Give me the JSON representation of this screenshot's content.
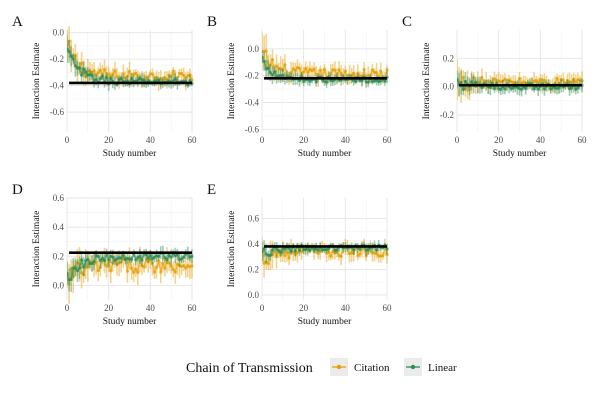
{
  "colors": {
    "citation": "#E69F00",
    "linear": "#2E8B57",
    "truth": "#000000",
    "grid": "#e5e5e5",
    "legend_key_bg": "#ebebeb"
  },
  "legend": {
    "title": "Chain of Transmission",
    "entries": [
      {
        "label": "Citation",
        "color": "#E69F00"
      },
      {
        "label": "Linear",
        "color": "#2E8B57"
      }
    ]
  },
  "chart_data": [
    {
      "type": "line",
      "panel": "A",
      "xlabel": "Study number",
      "ylabel": "Interaction Estimate",
      "xlim": [
        0,
        60
      ],
      "ylim": [
        -0.75,
        0.02
      ],
      "xticks": [
        0,
        20,
        40,
        60
      ],
      "yticks": [
        -0.6,
        -0.4,
        -0.2,
        0.0
      ],
      "ytick_labels": [
        "-0.6",
        "-0.4",
        "-0.2",
        "0.0"
      ],
      "grid": true,
      "true_value": -0.38,
      "series": [
        {
          "name": "Citation",
          "start": -0.12,
          "level": -0.33,
          "spread": 0.04,
          "band": 0.05
        },
        {
          "name": "Linear",
          "start": -0.14,
          "level": -0.37,
          "spread": 0.025,
          "band": 0.035
        }
      ]
    },
    {
      "type": "line",
      "panel": "B",
      "xlabel": "Study number",
      "ylabel": "Interaction Estimate",
      "xlim": [
        0,
        60
      ],
      "ylim": [
        -0.62,
        0.14
      ],
      "xticks": [
        0,
        20,
        40,
        60
      ],
      "yticks": [
        -0.6,
        -0.4,
        -0.2,
        0.0
      ],
      "ytick_labels": [
        "-0.6",
        "-0.4",
        "-0.2",
        "0.0"
      ],
      "grid": true,
      "true_value": -0.22,
      "series": [
        {
          "name": "Citation",
          "start": -0.05,
          "level": -0.19,
          "spread": 0.04,
          "band": 0.05
        },
        {
          "name": "Linear",
          "start": -0.08,
          "level": -0.23,
          "spread": 0.02,
          "band": 0.03
        }
      ]
    },
    {
      "type": "line",
      "panel": "C",
      "xlabel": "Study number",
      "ylabel": "Interaction Estimate",
      "xlim": [
        0,
        60
      ],
      "ylim": [
        -0.32,
        0.4
      ],
      "xticks": [
        0,
        20,
        40,
        60
      ],
      "yticks": [
        -0.2,
        0.0,
        0.2
      ],
      "ytick_labels": [
        "-0.2",
        "0.0",
        "0.2"
      ],
      "grid": true,
      "true_value": 0.01,
      "series": [
        {
          "name": "Citation",
          "start": 0.02,
          "level": 0.03,
          "spread": 0.03,
          "band": 0.045
        },
        {
          "name": "Linear",
          "start": 0.03,
          "level": 0.0,
          "spread": 0.02,
          "band": 0.035
        }
      ]
    },
    {
      "type": "line",
      "panel": "D",
      "xlabel": "Study number",
      "ylabel": "Interaction Estimate",
      "xlim": [
        0,
        60
      ],
      "ylim": [
        -0.1,
        0.6
      ],
      "xticks": [
        0,
        20,
        40,
        60
      ],
      "yticks": [
        0.0,
        0.2,
        0.4,
        0.6
      ],
      "ytick_labels": [
        "0.0",
        "0.2",
        "0.4",
        "0.6"
      ],
      "grid": true,
      "true_value": 0.225,
      "series": [
        {
          "name": "Citation",
          "start": 0.02,
          "level": 0.14,
          "spread": 0.05,
          "band": 0.06
        },
        {
          "name": "Linear",
          "start": 0.05,
          "level": 0.2,
          "spread": 0.025,
          "band": 0.035
        }
      ]
    },
    {
      "type": "line",
      "panel": "E",
      "xlabel": "Study number",
      "ylabel": "Interaction Estimate",
      "xlim": [
        0,
        60
      ],
      "ylim": [
        -0.04,
        0.76
      ],
      "xticks": [
        0,
        20,
        40,
        60
      ],
      "yticks": [
        0.0,
        0.2,
        0.4,
        0.6
      ],
      "ytick_labels": [
        "0.0",
        "0.2",
        "0.4",
        "0.6"
      ],
      "grid": true,
      "true_value": 0.38,
      "series": [
        {
          "name": "Citation",
          "start": 0.3,
          "level": 0.34,
          "spread": 0.04,
          "band": 0.05
        },
        {
          "name": "Linear",
          "start": 0.31,
          "level": 0.37,
          "spread": 0.02,
          "band": 0.03
        }
      ]
    }
  ]
}
